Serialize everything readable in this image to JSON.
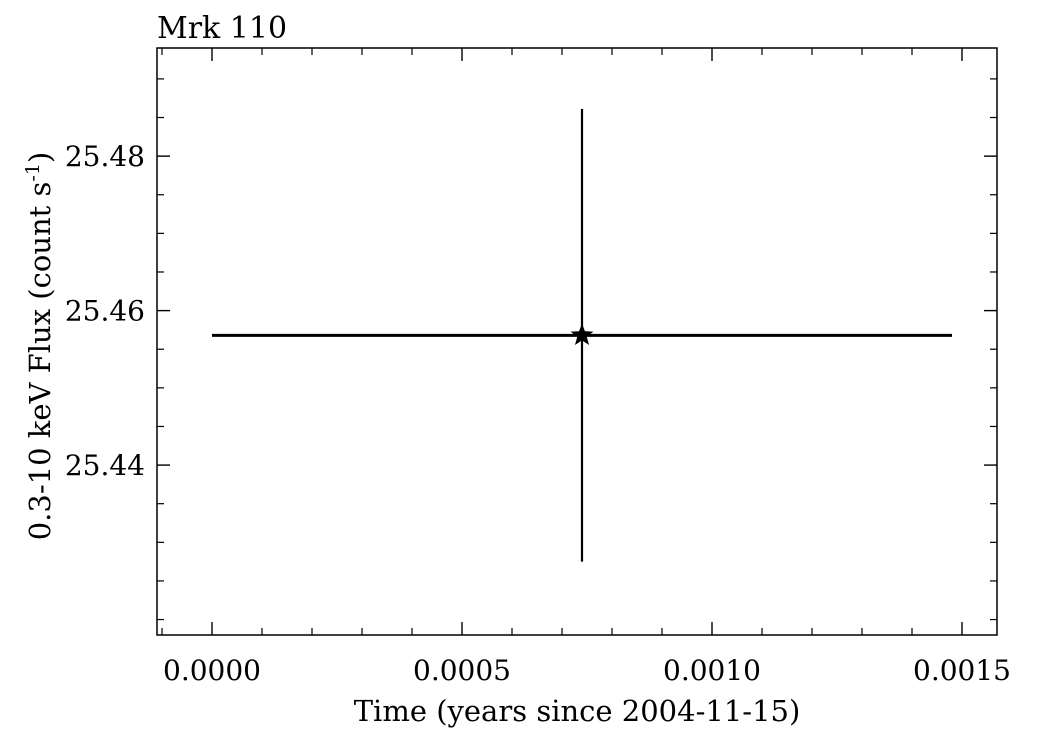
{
  "chart_data": {
    "type": "scatter",
    "title": "Mrk 110",
    "xlabel": "Time (years since 2004-11-15)",
    "ylabel_main": "0.3-10 keV Flux (count s",
    "ylabel_sup": "-1",
    "ylabel_close": ")",
    "xlim": [
      -0.00011,
      0.00157
    ],
    "ylim": [
      25.418,
      25.494
    ],
    "x_ticks": [
      0.0,
      0.0005,
      0.001,
      0.0015
    ],
    "x_tick_labels": [
      "0.0000",
      "0.0005",
      "0.0010",
      "0.0015"
    ],
    "x_minor_step": 0.0001,
    "y_ticks": [
      25.44,
      25.46,
      25.48
    ],
    "y_tick_labels": [
      "25.44",
      "25.46",
      "25.48"
    ],
    "y_minor_step": 0.005,
    "grid": false,
    "series": [
      {
        "marker": "star",
        "points": [
          {
            "x": 0.00074,
            "y": 25.4568,
            "xerr_low": 0.00074,
            "xerr_high": 0.00074,
            "yerr_low": 0.0293,
            "yerr_high": 0.0293
          }
        ]
      }
    ],
    "colors": {
      "axes": "#000000",
      "marker": "#000000",
      "background": "#ffffff"
    }
  }
}
